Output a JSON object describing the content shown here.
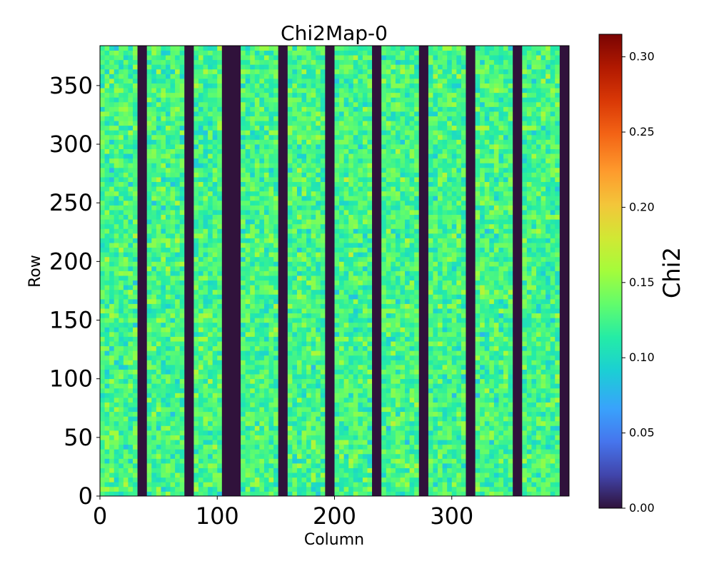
{
  "chart_data": {
    "type": "heatmap",
    "title": "Chi2Map-0",
    "xlabel": "Column",
    "ylabel": "Row",
    "xlim": [
      0,
      400
    ],
    "ylim": [
      0,
      384
    ],
    "xticks": [
      0,
      100,
      200,
      300
    ],
    "yticks": [
      0,
      50,
      100,
      150,
      200,
      250,
      300,
      350
    ],
    "colormap": "turbo",
    "grid": false,
    "colorbar": {
      "label": "Chi2",
      "range": [
        0.0,
        0.315
      ],
      "ticks": [
        "0.00",
        "0.05",
        "0.10",
        "0.15",
        "0.20",
        "0.25",
        "0.30"
      ],
      "tick_values": [
        0.0,
        0.05,
        0.1,
        0.15,
        0.2,
        0.25,
        0.3
      ]
    },
    "dead_columns": [
      [
        32,
        40
      ],
      [
        72,
        80
      ],
      [
        104,
        120
      ],
      [
        152,
        160
      ],
      [
        192,
        200
      ],
      [
        232,
        240
      ],
      [
        272,
        280
      ],
      [
        312,
        320
      ],
      [
        352,
        360
      ],
      [
        392,
        400
      ]
    ],
    "dead_value": 0.0,
    "active_value_mean": 0.125,
    "active_value_range": [
      0.08,
      0.18
    ]
  },
  "colors": {
    "dead": "#30123b"
  }
}
